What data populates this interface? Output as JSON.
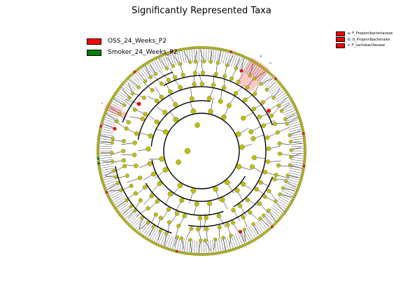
{
  "title": "Significantly Represented Taxa",
  "colors": {
    "enriched_in_group_a": "#ff0000",
    "enriched_in_group_b": "#008000",
    "not_significant": "#c0c000",
    "highlight": "#ffb8b8",
    "edge": "#000000"
  },
  "groups": [
    {
      "label": "OSS_24_Weeks_P2",
      "color": "#ff0000"
    },
    {
      "label": "Smoker_24_Weeks_P2",
      "color": "#008000"
    }
  ],
  "taxa_legend": [
    {
      "key": "a",
      "label": "a: F_Propionibacteriaceae",
      "color": "#ff0000"
    },
    {
      "key": "b",
      "label": "b: O_Propionibacteriales",
      "color": "#ff0000"
    },
    {
      "key": "c",
      "label": "c: F_Lactobacillaceae",
      "color": "#ff0000"
    }
  ],
  "highlight_labels": [
    {
      "key": "a",
      "text": "a"
    },
    {
      "key": "b",
      "text": "b"
    },
    {
      "key": "c",
      "text": "c"
    }
  ]
}
